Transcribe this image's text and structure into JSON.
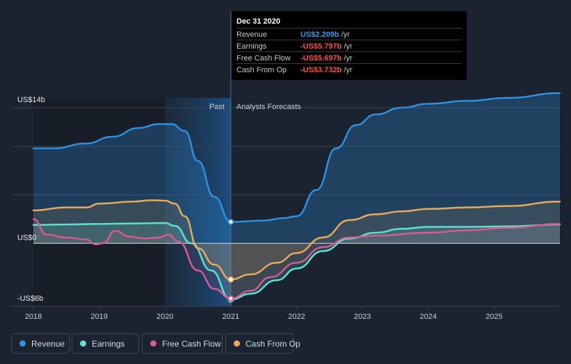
{
  "chart_data": {
    "type": "area",
    "y_axis": {
      "top_label": "US$14b",
      "zero_label": "US$0",
      "bottom_label": "-US$6b",
      "ylim": [
        -6.5,
        15
      ]
    },
    "x": {
      "ticks": [
        "2018",
        "2019",
        "2020",
        "2021",
        "2022",
        "2023",
        "2024",
        "2025"
      ],
      "range": [
        2018,
        2026
      ]
    },
    "divider_x": 2021,
    "past_label": "Past",
    "forecast_label": "Analysts Forecasts",
    "series": [
      {
        "name": "Revenue",
        "color": "#2f8fe0",
        "points": [
          [
            2018,
            9.8
          ],
          [
            2018.3,
            9.8
          ],
          [
            2018.8,
            10.3
          ],
          [
            2019.2,
            11.0
          ],
          [
            2019.6,
            11.9
          ],
          [
            2019.9,
            12.3
          ],
          [
            2020.1,
            12.3
          ],
          [
            2020.3,
            11.6
          ],
          [
            2020.5,
            8.5
          ],
          [
            2020.75,
            4.8
          ],
          [
            2021,
            2.209
          ],
          [
            2021.5,
            2.35
          ],
          [
            2021.8,
            2.6
          ],
          [
            2022,
            2.8
          ],
          [
            2022.3,
            5.5
          ],
          [
            2022.6,
            9.8
          ],
          [
            2022.9,
            12.2
          ],
          [
            2023.2,
            13.3
          ],
          [
            2023.6,
            14.0
          ],
          [
            2024,
            14.4
          ],
          [
            2024.6,
            14.7
          ],
          [
            2025.2,
            15.0
          ],
          [
            2026,
            15.5
          ]
        ]
      },
      {
        "name": "Earnings",
        "color": "#5de0cf",
        "points": [
          [
            2018,
            1.9
          ],
          [
            2018.5,
            1.95
          ],
          [
            2019,
            2.0
          ],
          [
            2019.5,
            2.05
          ],
          [
            2020,
            2.1
          ],
          [
            2020.15,
            1.8
          ],
          [
            2020.4,
            0.0
          ],
          [
            2020.7,
            -2.8
          ],
          [
            2021,
            -5.797
          ],
          [
            2021.3,
            -5.2
          ],
          [
            2021.7,
            -3.8
          ],
          [
            2022,
            -2.6
          ],
          [
            2022.4,
            -0.8
          ],
          [
            2022.8,
            0.5
          ],
          [
            2023.2,
            1.1
          ],
          [
            2023.6,
            1.5
          ],
          [
            2024,
            1.7
          ],
          [
            2024.6,
            1.7
          ],
          [
            2025.2,
            1.75
          ],
          [
            2026,
            1.95
          ]
        ]
      },
      {
        "name": "Free Cash Flow",
        "color": "#d65b8f",
        "points": [
          [
            2018,
            2.5
          ],
          [
            2018.2,
            0.9
          ],
          [
            2018.5,
            0.6
          ],
          [
            2018.8,
            0.4
          ],
          [
            2018.95,
            -0.1
          ],
          [
            2019.05,
            0.0
          ],
          [
            2019.25,
            1.3
          ],
          [
            2019.45,
            0.7
          ],
          [
            2019.7,
            0.5
          ],
          [
            2019.9,
            0.6
          ],
          [
            2020.05,
            0.9
          ],
          [
            2020.2,
            0.2
          ],
          [
            2020.5,
            -2.8
          ],
          [
            2020.75,
            -4.7
          ],
          [
            2021,
            -5.697
          ],
          [
            2021.3,
            -4.9
          ],
          [
            2021.6,
            -3.5
          ],
          [
            2022,
            -2.0
          ],
          [
            2022.4,
            -0.4
          ],
          [
            2022.8,
            0.6
          ],
          [
            2023.2,
            0.8
          ],
          [
            2024,
            1.1
          ],
          [
            2024.6,
            1.35
          ],
          [
            2025.2,
            1.6
          ],
          [
            2026,
            2.0
          ]
        ]
      },
      {
        "name": "Cash From Op",
        "color": "#e8aa5b",
        "points": [
          [
            2018,
            3.4
          ],
          [
            2018.5,
            3.7
          ],
          [
            2018.8,
            3.7
          ],
          [
            2019,
            4.1
          ],
          [
            2019.5,
            4.3
          ],
          [
            2019.8,
            4.45
          ],
          [
            2020,
            4.4
          ],
          [
            2020.15,
            4.1
          ],
          [
            2020.3,
            2.8
          ],
          [
            2020.5,
            -0.5
          ],
          [
            2020.75,
            -2.2
          ],
          [
            2021,
            -3.732
          ],
          [
            2021.3,
            -3.2
          ],
          [
            2021.7,
            -2.0
          ],
          [
            2022,
            -1.0
          ],
          [
            2022.4,
            0.6
          ],
          [
            2022.8,
            2.4
          ],
          [
            2023.2,
            3.0
          ],
          [
            2023.6,
            3.3
          ],
          [
            2024,
            3.55
          ],
          [
            2024.6,
            3.7
          ],
          [
            2025.2,
            3.85
          ],
          [
            2026,
            4.3
          ]
        ]
      }
    ]
  },
  "tooltip": {
    "title": "Dec 31 2020",
    "rows": [
      {
        "label": "Revenue",
        "value": "US$2.209b",
        "unit": "/yr",
        "color": "#3a9ae8"
      },
      {
        "label": "Earnings",
        "value": "-US$5.797b",
        "unit": "/yr",
        "color": "#ff4d4d"
      },
      {
        "label": "Free Cash Flow",
        "value": "-US$5.697b",
        "unit": "/yr",
        "color": "#ff4d4d"
      },
      {
        "label": "Cash From Op",
        "value": "-US$3.732b",
        "unit": "/yr",
        "color": "#ff4d4d"
      }
    ]
  },
  "legend": [
    {
      "label": "Revenue",
      "color": "#2f8fe0"
    },
    {
      "label": "Earnings",
      "color": "#5de0cf"
    },
    {
      "label": "Free Cash Flow",
      "color": "#d65b8f"
    },
    {
      "label": "Cash From Op",
      "color": "#e8aa5b"
    }
  ]
}
